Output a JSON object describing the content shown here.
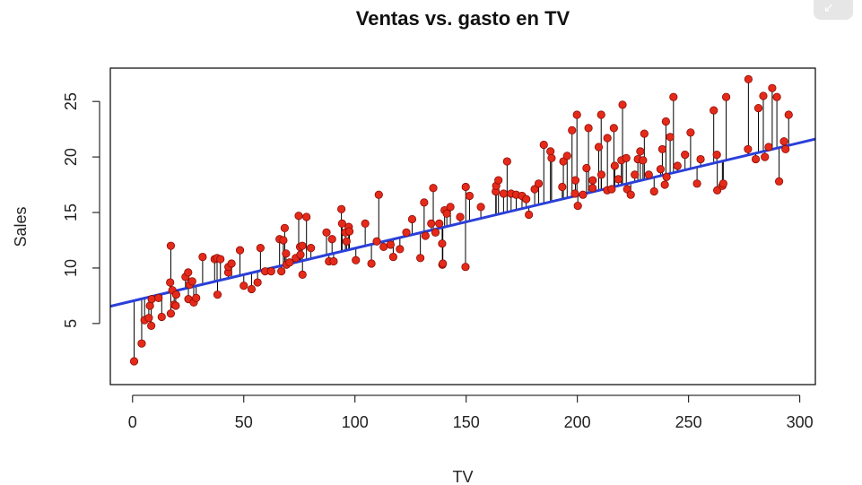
{
  "ui": {
    "corner_button_icon": "collapse-arrow-icon",
    "corner_button_glyph": "↙"
  },
  "colors": {
    "points": "#e52a1a",
    "point_outline": "#8a0d05",
    "residuals": "#000000",
    "regression_line": "#2b3fd8",
    "frame": "#000000"
  },
  "chart_data": {
    "type": "scatter",
    "title": "Ventas vs. gasto en TV",
    "xlabel": "TV",
    "ylabel": "Sales",
    "xlim": [
      -10,
      307
    ],
    "ylim": [
      -0.5,
      28
    ],
    "xticks": [
      0,
      50,
      100,
      150,
      200,
      250,
      300
    ],
    "yticks": [
      5,
      10,
      15,
      20,
      25
    ],
    "grid": false,
    "regression_line": {
      "intercept": 7.03,
      "slope": 0.0475
    },
    "residual_segments": true,
    "points": [
      [
        0.7,
        1.6
      ],
      [
        4.1,
        3.2
      ],
      [
        5.4,
        5.3
      ],
      [
        7.3,
        5.5
      ],
      [
        7.8,
        6.6
      ],
      [
        8.4,
        4.8
      ],
      [
        8.6,
        7.2
      ],
      [
        11.7,
        7.3
      ],
      [
        13.1,
        5.6
      ],
      [
        16.9,
        8.7
      ],
      [
        17.2,
        5.9
      ],
      [
        17.2,
        12.0
      ],
      [
        17.9,
        8.0
      ],
      [
        18.7,
        6.7
      ],
      [
        19.4,
        6.6
      ],
      [
        19.6,
        7.6
      ],
      [
        23.8,
        9.2
      ],
      [
        25.0,
        9.6
      ],
      [
        25.1,
        7.2
      ],
      [
        25.6,
        8.5
      ],
      [
        26.8,
        8.8
      ],
      [
        27.5,
        6.9
      ],
      [
        28.6,
        7.3
      ],
      [
        31.5,
        11.0
      ],
      [
        36.9,
        10.8
      ],
      [
        38.0,
        10.9
      ],
      [
        38.2,
        7.6
      ],
      [
        39.5,
        10.8
      ],
      [
        43.0,
        9.6
      ],
      [
        43.1,
        10.1
      ],
      [
        44.5,
        10.4
      ],
      [
        48.3,
        11.6
      ],
      [
        50.0,
        8.4
      ],
      [
        53.5,
        8.1
      ],
      [
        56.2,
        8.7
      ],
      [
        57.5,
        11.8
      ],
      [
        59.6,
        9.7
      ],
      [
        62.3,
        9.7
      ],
      [
        66.1,
        12.6
      ],
      [
        66.9,
        9.7
      ],
      [
        67.8,
        12.5
      ],
      [
        68.4,
        13.6
      ],
      [
        69.0,
        11.3
      ],
      [
        69.2,
        10.3
      ],
      [
        70.6,
        10.5
      ],
      [
        73.4,
        10.9
      ],
      [
        74.7,
        14.7
      ],
      [
        75.3,
        11.9
      ],
      [
        75.5,
        11.2
      ],
      [
        76.3,
        12.0
      ],
      [
        76.4,
        9.4
      ],
      [
        78.2,
        14.6
      ],
      [
        80.2,
        11.8
      ],
      [
        87.2,
        13.2
      ],
      [
        88.3,
        10.6
      ],
      [
        89.7,
        12.6
      ],
      [
        90.4,
        10.6
      ],
      [
        93.9,
        15.3
      ],
      [
        94.2,
        14.0
      ],
      [
        95.7,
        13.2
      ],
      [
        96.2,
        12.4
      ],
      [
        97.2,
        13.7
      ],
      [
        97.5,
        13.3
      ],
      [
        100.4,
        10.7
      ],
      [
        104.6,
        14.0
      ],
      [
        107.4,
        10.4
      ],
      [
        109.8,
        12.4
      ],
      [
        110.7,
        16.6
      ],
      [
        112.9,
        11.9
      ],
      [
        116.0,
        12.1
      ],
      [
        117.2,
        11.0
      ],
      [
        120.2,
        11.7
      ],
      [
        123.1,
        13.2
      ],
      [
        125.7,
        14.4
      ],
      [
        129.4,
        10.9
      ],
      [
        131.1,
        15.9
      ],
      [
        131.7,
        12.9
      ],
      [
        134.3,
        14.0
      ],
      [
        135.2,
        17.2
      ],
      [
        136.2,
        13.2
      ],
      [
        137.9,
        14.0
      ],
      [
        139.2,
        12.2
      ],
      [
        139.3,
        10.3
      ],
      [
        139.5,
        10.4
      ],
      [
        140.3,
        15.2
      ],
      [
        141.3,
        14.9
      ],
      [
        142.9,
        15.5
      ],
      [
        147.3,
        14.6
      ],
      [
        149.7,
        10.1
      ],
      [
        149.8,
        17.3
      ],
      [
        151.5,
        16.5
      ],
      [
        156.6,
        15.5
      ],
      [
        163.3,
        16.9
      ],
      [
        163.5,
        17.4
      ],
      [
        164.5,
        17.9
      ],
      [
        166.8,
        16.7
      ],
      [
        168.4,
        19.6
      ],
      [
        170.2,
        16.7
      ],
      [
        172.5,
        16.6
      ],
      [
        175.1,
        16.5
      ],
      [
        177.0,
        16.2
      ],
      [
        178.2,
        14.8
      ],
      [
        180.8,
        17.1
      ],
      [
        182.6,
        17.6
      ],
      [
        184.9,
        21.1
      ],
      [
        187.9,
        20.5
      ],
      [
        188.4,
        19.9
      ],
      [
        193.2,
        17.3
      ],
      [
        193.7,
        19.6
      ],
      [
        195.4,
        20.1
      ],
      [
        197.6,
        22.4
      ],
      [
        198.9,
        16.7
      ],
      [
        199.1,
        17.9
      ],
      [
        199.8,
        23.8
      ],
      [
        200.2,
        15.6
      ],
      [
        202.5,
        16.6
      ],
      [
        204.1,
        19.0
      ],
      [
        205.0,
        22.6
      ],
      [
        206.8,
        17.2
      ],
      [
        206.9,
        17.9
      ],
      [
        209.6,
        20.9
      ],
      [
        210.7,
        23.8
      ],
      [
        210.8,
        18.4
      ],
      [
        213.4,
        17.0
      ],
      [
        213.5,
        21.7
      ],
      [
        215.4,
        17.1
      ],
      [
        216.4,
        22.6
      ],
      [
        216.8,
        19.2
      ],
      [
        218.4,
        18.0
      ],
      [
        219.8,
        19.7
      ],
      [
        220.3,
        24.7
      ],
      [
        222.4,
        17.1
      ],
      [
        224.0,
        16.6
      ],
      [
        225.8,
        18.4
      ],
      [
        227.2,
        19.8
      ],
      [
        228.3,
        20.5
      ],
      [
        229.5,
        19.7
      ],
      [
        230.1,
        22.1
      ],
      [
        232.1,
        18.4
      ],
      [
        234.5,
        16.9
      ],
      [
        237.4,
        18.9
      ],
      [
        238.2,
        20.7
      ],
      [
        239.3,
        17.5
      ],
      [
        239.8,
        23.2
      ],
      [
        240.1,
        18.2
      ],
      [
        241.7,
        21.8
      ],
      [
        243.2,
        25.4
      ],
      [
        248.4,
        20.2
      ],
      [
        250.9,
        22.2
      ],
      [
        253.8,
        17.6
      ],
      [
        255.4,
        19.8
      ],
      [
        261.3,
        24.2
      ],
      [
        262.7,
        20.2
      ],
      [
        262.9,
        17.0
      ],
      [
        265.2,
        17.4
      ],
      [
        265.6,
        17.6
      ],
      [
        266.9,
        25.4
      ],
      [
        276.7,
        20.7
      ],
      [
        276.9,
        27.0
      ],
      [
        280.2,
        19.8
      ],
      [
        281.4,
        24.4
      ],
      [
        283.6,
        25.5
      ],
      [
        284.3,
        20.0
      ],
      [
        286.0,
        20.9
      ],
      [
        287.6,
        26.2
      ],
      [
        289.7,
        25.4
      ],
      [
        290.7,
        17.8
      ],
      [
        292.9,
        21.4
      ],
      [
        293.6,
        20.7
      ],
      [
        295.0,
        23.8
      ],
      [
        222.0,
        19.9
      ],
      [
        245.0,
        19.2
      ]
    ]
  }
}
